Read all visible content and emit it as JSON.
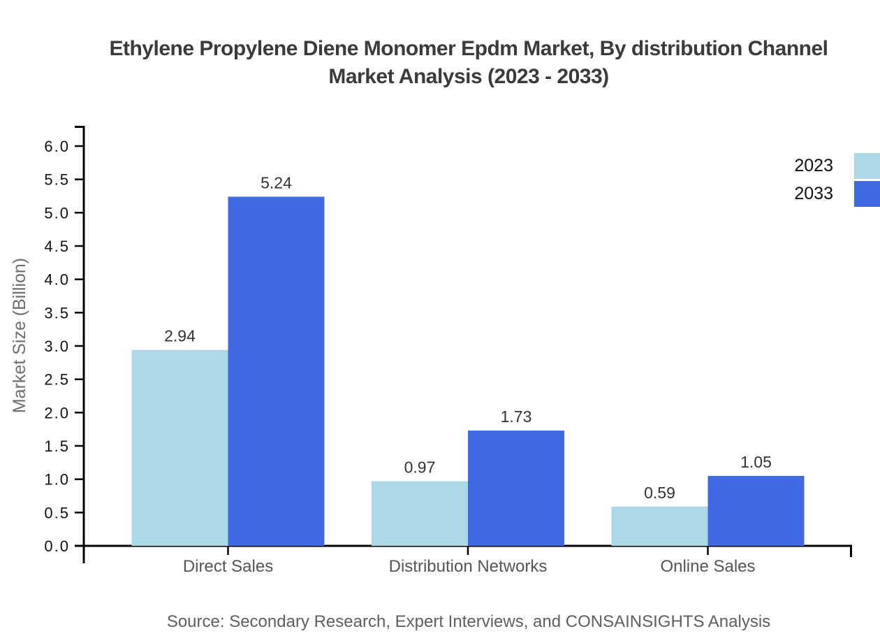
{
  "header": {
    "title_lines": [
      "Ethylene Propylene Diene Monomer Epdm Market, By distribution Channel",
      "Market Analysis (2023 - 2033)"
    ]
  },
  "footer": {
    "source": "Source: Secondary Research, Expert Interviews, and CONSAINSIGHTS Analysis"
  },
  "chart_data": {
    "type": "bar",
    "title": "Ethylene Propylene Diene Monomer Epdm Market, By distribution Channel Market Analysis (2023 - 2033)",
    "categories": [
      "Direct Sales",
      "Distribution Networks",
      "Online Sales"
    ],
    "series": [
      {
        "name": "2023",
        "color": "#ADD8E6",
        "values": [
          2.94,
          0.97,
          0.59
        ]
      },
      {
        "name": "2033",
        "color": "#4169E1",
        "values": [
          5.24,
          1.73,
          1.05
        ]
      }
    ],
    "xlabel": "",
    "ylabel": "Market Size (Billion)",
    "ylim": [
      0.0,
      6.0
    ],
    "ytick_step": 0.5,
    "grid": false,
    "legend_position": "top-right",
    "value_labels": true
  },
  "colors": {
    "axis_line": "#000000",
    "title_text": "#3b3b3b",
    "y_tick_label": "#111111",
    "category_label": "#555555",
    "value_label": "#333333",
    "axis_title": "#6e6e6e",
    "source_text": "#5f5f5f",
    "series_2023": "#ADD8E6",
    "series_2033": "#4169E1"
  }
}
